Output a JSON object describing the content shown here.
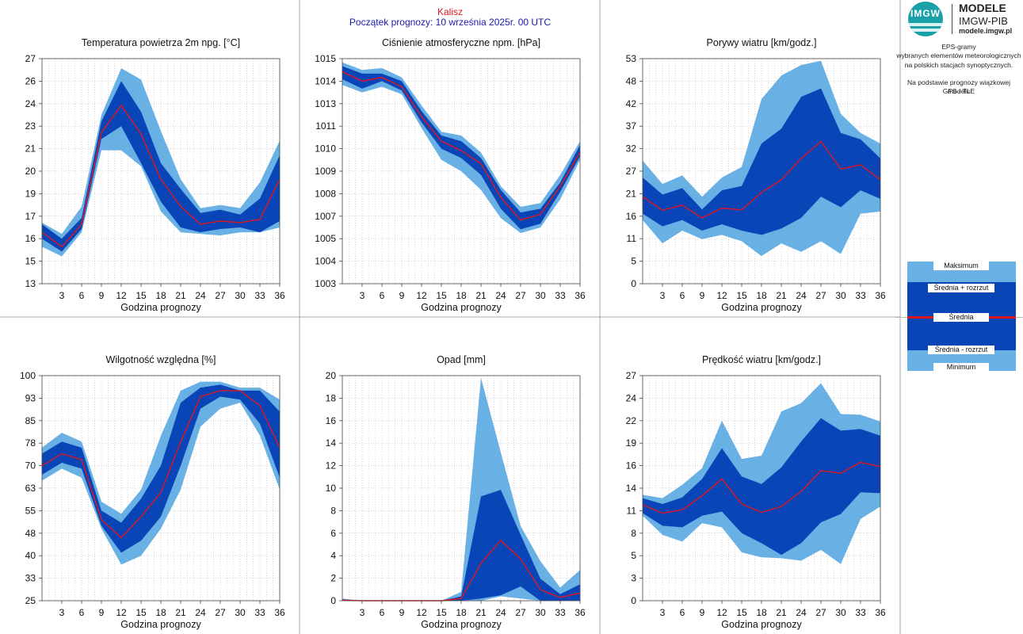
{
  "header": {
    "city": "Kalisz",
    "start": "Początek prognozy: 10 września 2025r. 00 UTC"
  },
  "logo": {
    "mark": "IMGW",
    "title": "MODELE",
    "subtitle": "IMGW-PIB",
    "url": "modele.imgw.pl"
  },
  "info": {
    "line1": "EPS-gramy",
    "line2": "wybranych elementów meteorologicznych",
    "line3": "na polskich stacjach  synoptycznych.",
    "line4": "Na podstawie prognozy wiązkowej modelu",
    "line5": "GFS - TLE"
  },
  "legend": {
    "max": "Maksimum",
    "plus": "Średnia + rozrzut",
    "mean": "Średnia",
    "minus": "Średnia - rozrzut",
    "min": "Minimum"
  },
  "colors": {
    "minmax": "#69b0e5",
    "spread": "#0a45b8",
    "mean": "#e0161d"
  },
  "chart_data": [
    {
      "type": "area",
      "title": "Temperatura powietrza 2m npg. [°C]",
      "xlabel": "Godzina prognozy",
      "x": [
        0,
        3,
        6,
        9,
        12,
        15,
        18,
        21,
        24,
        27,
        30,
        33,
        36
      ],
      "xticks": [
        3,
        6,
        9,
        12,
        15,
        18,
        21,
        24,
        27,
        30,
        33,
        36
      ],
      "yticks": [
        "13",
        "15",
        "16",
        "17",
        "19",
        "20",
        "21",
        "23",
        "24",
        "26",
        "27"
      ],
      "ylim": [
        13,
        27
      ],
      "max": [
        16.8,
        16.1,
        17.8,
        23.5,
        26.4,
        25.7,
        22.5,
        19.5,
        17.7,
        17.9,
        17.7,
        19.3,
        21.9
      ],
      "plus": [
        16.7,
        15.8,
        17.1,
        23.1,
        25.6,
        23.7,
        20.5,
        18.9,
        17.4,
        17.6,
        17.3,
        18.3,
        21.0
      ],
      "mean": [
        16.2,
        15.3,
        16.7,
        22.4,
        24.1,
        22.3,
        19.5,
        17.8,
        16.7,
        16.9,
        16.8,
        17.0,
        19.5
      ],
      "minus": [
        15.8,
        15.0,
        16.4,
        22.0,
        22.8,
        20.5,
        18.1,
        16.5,
        16.2,
        16.4,
        16.5,
        16.2,
        16.9
      ],
      "min": [
        15.3,
        14.7,
        16.2,
        21.3,
        21.3,
        20.3,
        17.5,
        16.2,
        16.1,
        16.0,
        16.2,
        16.2,
        16.5
      ]
    },
    {
      "type": "area",
      "title": "Ciśnienie atmosferyczne npm. [hPa]",
      "xlabel": "Godzina prognozy",
      "x": [
        0,
        3,
        6,
        9,
        12,
        15,
        18,
        21,
        24,
        27,
        30,
        33,
        36
      ],
      "xticks": [
        3,
        6,
        9,
        12,
        15,
        18,
        21,
        24,
        27,
        30,
        33,
        36
      ],
      "yticks": [
        "1003",
        "1004",
        "1005",
        "1007",
        "1008",
        "1009",
        "1010",
        "1011",
        "1013",
        "1014",
        "1015"
      ],
      "ylim": [
        1003,
        1015
      ],
      "max": [
        1014.8,
        1014.4,
        1014.5,
        1014.0,
        1012.5,
        1011.1,
        1010.9,
        1010.0,
        1008.2,
        1007.1,
        1007.3,
        1008.8,
        1010.6
      ],
      "plus": [
        1014.6,
        1014.2,
        1014.2,
        1013.8,
        1012.2,
        1010.9,
        1010.6,
        1009.7,
        1008.0,
        1006.8,
        1007.0,
        1008.4,
        1010.4
      ],
      "mean": [
        1014.3,
        1013.8,
        1014.0,
        1013.5,
        1011.9,
        1010.6,
        1010.1,
        1009.4,
        1007.6,
        1006.4,
        1006.7,
        1008.2,
        1010.0
      ],
      "minus": [
        1013.9,
        1013.4,
        1013.8,
        1013.3,
        1011.6,
        1010.2,
        1009.7,
        1008.8,
        1007.0,
        1005.9,
        1006.2,
        1007.9,
        1009.8
      ],
      "min": [
        1013.6,
        1013.2,
        1013.5,
        1013.1,
        1011.3,
        1009.6,
        1009.0,
        1008.0,
        1006.5,
        1005.7,
        1006.0,
        1007.5,
        1009.6
      ]
    },
    {
      "type": "area",
      "title": "Porywy wiatru [km/godz.]",
      "xlabel": "Godzina prognozy",
      "x": [
        0,
        3,
        6,
        9,
        12,
        15,
        18,
        21,
        24,
        27,
        30,
        33,
        36
      ],
      "xticks": [
        3,
        6,
        9,
        12,
        15,
        18,
        21,
        24,
        27,
        30,
        33,
        36
      ],
      "yticks": [
        "0",
        "5",
        "11",
        "16",
        "21",
        "27",
        "32",
        "37",
        "42",
        "48",
        "53"
      ],
      "ylim": [
        0,
        53
      ],
      "max": [
        29.0,
        23.5,
        25.5,
        20.5,
        25.0,
        27.5,
        43.5,
        49.0,
        51.5,
        52.5,
        40.0,
        35.5,
        33.0
      ],
      "plus": [
        25.0,
        21.0,
        22.5,
        17.5,
        22.0,
        23.0,
        33.0,
        36.5,
        44.0,
        46.0,
        35.5,
        34.0,
        29.5
      ],
      "mean": [
        20.5,
        17.3,
        18.5,
        15.5,
        17.8,
        17.4,
        21.5,
        24.5,
        29.5,
        33.5,
        27.0,
        28.0,
        24.5
      ],
      "minus": [
        16.5,
        13.5,
        15.0,
        12.5,
        14.0,
        12.5,
        11.5,
        13.0,
        15.5,
        20.5,
        18.0,
        22.0,
        20.0
      ],
      "min": [
        15.0,
        9.5,
        12.5,
        10.5,
        11.5,
        10.0,
        6.5,
        9.5,
        7.5,
        10.0,
        7.0,
        16.5,
        17.0
      ]
    },
    {
      "type": "area",
      "title": "Wilgotność względna [%]",
      "xlabel": "Godzina prognozy",
      "x": [
        0,
        3,
        6,
        9,
        12,
        15,
        18,
        21,
        24,
        27,
        30,
        33,
        36
      ],
      "xticks": [
        3,
        6,
        9,
        12,
        15,
        18,
        21,
        24,
        27,
        30,
        33,
        36
      ],
      "yticks": [
        "25",
        "33",
        "40",
        "48",
        "55",
        "63",
        "70",
        "78",
        "85",
        "93",
        "100"
      ],
      "ylim": [
        25,
        100
      ],
      "max": [
        76,
        81,
        78,
        58,
        54,
        62,
        80,
        95,
        98,
        98,
        96,
        96,
        92
      ],
      "plus": [
        74,
        78,
        76,
        55,
        51,
        59,
        70,
        91,
        96,
        97,
        95,
        95,
        88
      ],
      "mean": [
        70,
        74,
        72,
        52,
        46,
        53,
        61,
        78,
        93,
        95,
        95,
        90,
        76
      ],
      "minus": [
        67,
        71,
        69,
        50,
        41,
        45,
        53,
        70,
        89,
        93,
        92,
        84,
        66
      ],
      "min": [
        65,
        69,
        66,
        49,
        37,
        40,
        49,
        62,
        83,
        89,
        91,
        80,
        62
      ]
    },
    {
      "type": "area",
      "title": "Opad [mm]",
      "xlabel": "Godzina prognozy",
      "x": [
        0,
        3,
        6,
        9,
        12,
        15,
        18,
        21,
        24,
        27,
        30,
        33,
        36
      ],
      "xticks": [
        3,
        6,
        9,
        12,
        15,
        18,
        21,
        24,
        27,
        30,
        33,
        36
      ],
      "yticks": [
        "0",
        "2",
        "4",
        "6",
        "8",
        "10",
        "12",
        "14",
        "16",
        "18",
        "20"
      ],
      "ylim": [
        0,
        20.5
      ],
      "max": [
        0.2,
        0,
        0,
        0,
        0,
        0,
        0.8,
        20.3,
        13.5,
        6.8,
        3.6,
        1.2,
        2.8
      ],
      "plus": [
        0.1,
        0,
        0,
        0,
        0,
        0,
        0.4,
        9.5,
        10.1,
        6.0,
        2.0,
        0.6,
        1.5
      ],
      "mean": [
        0.05,
        0,
        0,
        0,
        0,
        0,
        0.2,
        3.4,
        5.5,
        3.8,
        1.0,
        0.3,
        0.7
      ],
      "minus": [
        0,
        0,
        0,
        0,
        0,
        0,
        0,
        0.2,
        0.5,
        1.3,
        0,
        0,
        0
      ],
      "min": [
        0,
        0,
        0,
        0,
        0,
        0,
        0,
        0,
        0.4,
        0.2,
        0,
        0,
        0
      ]
    },
    {
      "type": "area",
      "title": "Prędkość wiatru [km/godz.]",
      "xlabel": "Godzina prognozy",
      "x": [
        0,
        3,
        6,
        9,
        12,
        15,
        18,
        21,
        24,
        27,
        30,
        33,
        36
      ],
      "xticks": [
        3,
        6,
        9,
        12,
        15,
        18,
        21,
        24,
        27,
        30,
        33,
        36
      ],
      "yticks": [
        "0",
        "3",
        "5",
        "8",
        "11",
        "14",
        "16",
        "19",
        "22",
        "24",
        "27"
      ],
      "ylim": [
        0,
        27
      ],
      "max": [
        12.7,
        12.3,
        13.9,
        15.9,
        21.6,
        17.0,
        17.4,
        22.7,
        23.7,
        26.1,
        22.4,
        22.3,
        21.5
      ],
      "plus": [
        12.3,
        11.6,
        12.4,
        14.6,
        18.3,
        14.9,
        14.0,
        16.0,
        19.1,
        21.9,
        20.4,
        20.6,
        19.8
      ],
      "mean": [
        11.5,
        10.5,
        10.9,
        12.6,
        14.6,
        11.6,
        10.6,
        11.3,
        13.1,
        15.6,
        15.3,
        16.6,
        16.1
      ],
      "minus": [
        10.5,
        9.0,
        8.8,
        10.2,
        10.7,
        8.1,
        6.9,
        5.5,
        6.9,
        9.4,
        10.4,
        13.0,
        12.9
      ],
      "min": [
        10.2,
        7.9,
        7.1,
        9.3,
        8.8,
        5.8,
        5.2,
        5.1,
        4.8,
        6.1,
        4.4,
        9.8,
        11.3
      ]
    }
  ]
}
